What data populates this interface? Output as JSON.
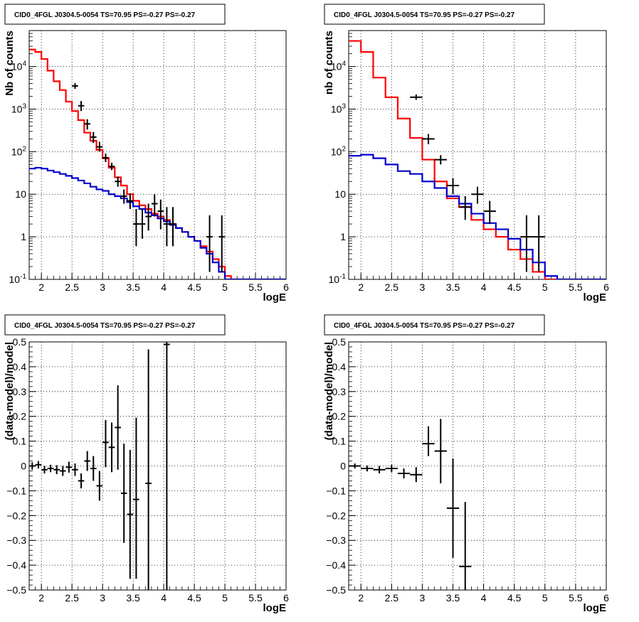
{
  "chart_data": [
    {
      "type": "line",
      "title": "CID0_4FGL J0304.5-0054 TS=70.95 PS=-0.27 PS=-0.27",
      "xlabel": "logE",
      "ylabel": "Nb of counts",
      "yscale": "log",
      "xlim": [
        1.8,
        6.0
      ],
      "ylim": [
        0.1,
        70000
      ],
      "xticks": [
        "2",
        "2.5",
        "3",
        "3.5",
        "4",
        "4.5",
        "5",
        "5.5",
        "6"
      ],
      "yticks": [
        "10^-1",
        "1",
        "10",
        "10^2",
        "10^3",
        "10^4"
      ],
      "grid": true,
      "colors": {
        "model": "#ff0000",
        "component": "#0000cc",
        "data": "#000000"
      },
      "series": [
        {
          "x": [
            1.85,
            1.95,
            2.05,
            2.15,
            2.25,
            2.35,
            2.45,
            2.55,
            2.65,
            2.75,
            2.85,
            2.95,
            3.05,
            3.15,
            3.25,
            3.35,
            3.45,
            3.55,
            3.65,
            3.75,
            3.85,
            3.95,
            4.05,
            4.15,
            4.25,
            4.35,
            4.45,
            4.55,
            4.65,
            4.75,
            4.85,
            4.95,
            5.05,
            5.15,
            5.25,
            5.35,
            5.45,
            5.55,
            5.65,
            5.75,
            5.85,
            5.95
          ],
          "values": [
            25000,
            22000,
            15000,
            8000,
            4500,
            2800,
            1500,
            900,
            550,
            280,
            180,
            110,
            70,
            42,
            25,
            16,
            10,
            7,
            5.5,
            4.5,
            3.5,
            3,
            2.5,
            2,
            1.6,
            1.3,
            1,
            0.8,
            0.6,
            0.45,
            0.3,
            0.2,
            0.12,
            0.1,
            0.1,
            0.1,
            0.1,
            0.1,
            0.1,
            0.1,
            0.1,
            0.1
          ]
        },
        {
          "x": [
            1.85,
            1.95,
            2.05,
            2.15,
            2.25,
            2.35,
            2.45,
            2.55,
            2.65,
            2.75,
            2.85,
            2.95,
            3.05,
            3.15,
            3.25,
            3.35,
            3.45,
            3.55,
            3.65,
            3.75,
            3.85,
            3.95,
            4.05,
            4.15,
            4.25,
            4.35,
            4.45,
            4.55,
            4.65,
            4.75,
            4.85,
            4.95,
            5.05,
            5.15,
            5.25,
            5.35,
            5.45,
            5.55,
            5.65,
            5.75,
            5.85,
            5.95
          ],
          "values": [
            40,
            42,
            40,
            36,
            33,
            30,
            27,
            24,
            21,
            18,
            15,
            13,
            12,
            10,
            9,
            8,
            6.5,
            5.2,
            4.5,
            3.7,
            3.2,
            2.7,
            2.3,
            1.9,
            1.6,
            1.3,
            1,
            0.8,
            0.55,
            0.4,
            0.25,
            0.15,
            0.1,
            0.1,
            0.1,
            0.1,
            0.1,
            0.1,
            0.1,
            0.1,
            0.1,
            0.1
          ]
        },
        {
          "x": [
            2.55,
            2.65,
            2.75,
            2.85,
            2.95,
            3.05,
            3.15,
            3.25,
            3.35,
            3.45,
            3.55,
            3.65,
            3.75,
            3.85,
            3.95,
            4.05,
            4.15,
            4.75,
            4.95
          ],
          "values": [
            3500,
            1200,
            450,
            220,
            130,
            72,
            45,
            20,
            9,
            7,
            2,
            2,
            3,
            6,
            4,
            2,
            2,
            1,
            1
          ],
          "yerr_low": [
            500,
            300,
            120,
            60,
            30,
            15,
            8,
            5,
            3,
            2.5,
            1.4,
            1.1,
            1.6,
            3,
            2.5,
            1.4,
            1.4,
            0.85,
            0.85
          ],
          "yerr_high": [
            600,
            350,
            130,
            70,
            40,
            18,
            10,
            6,
            4,
            3.5,
            2.5,
            2.6,
            3,
            4,
            3.5,
            3,
            3,
            2.2,
            2.2
          ]
        }
      ]
    },
    {
      "type": "line",
      "title": "CID0_4FGL J0304.5-0054 TS=70.95 PS=-0.27 PS=-0.27",
      "xlabel": "logE",
      "ylabel": "nb of counts",
      "yscale": "log",
      "xlim": [
        1.8,
        6.0
      ],
      "ylim": [
        0.1,
        70000
      ],
      "xticks": [
        "2",
        "2.5",
        "3",
        "3.5",
        "4",
        "4.5",
        "5",
        "5.5",
        "6"
      ],
      "yticks": [
        "10^-1",
        "1",
        "10",
        "10^2",
        "10^3",
        "10^4"
      ],
      "grid": true,
      "colors": {
        "model": "#ff0000",
        "component": "#0000cc",
        "data": "#000000"
      },
      "series": [
        {
          "x": [
            1.9,
            2.1,
            2.3,
            2.5,
            2.7,
            2.9,
            3.1,
            3.3,
            3.5,
            3.7,
            3.9,
            4.1,
            4.3,
            4.5,
            4.7,
            4.9,
            5.1,
            5.3,
            5.5,
            5.7,
            5.9
          ],
          "values": [
            40000,
            22000,
            5500,
            1900,
            600,
            210,
            65,
            20,
            8,
            5,
            2.5,
            1.5,
            1,
            0.5,
            0.3,
            0.15,
            0.1,
            0.1,
            0.1,
            0.1,
            0.1
          ]
        },
        {
          "x": [
            1.9,
            2.1,
            2.3,
            2.5,
            2.7,
            2.9,
            3.1,
            3.3,
            3.5,
            3.7,
            3.9,
            4.1,
            4.3,
            4.5,
            4.7,
            4.9,
            5.1,
            5.3,
            5.5,
            5.7,
            5.9
          ],
          "values": [
            80,
            85,
            70,
            50,
            35,
            30,
            20,
            14,
            9,
            6,
            3.5,
            2.1,
            1.5,
            0.9,
            0.5,
            0.25,
            0.12,
            0.1,
            0.1,
            0.1,
            0.1
          ]
        },
        {
          "x": [
            2.9,
            3.1,
            3.3,
            3.5,
            3.7,
            3.9,
            4.1,
            4.7,
            4.9
          ],
          "values": [
            1900,
            200,
            65,
            16,
            5,
            10,
            4,
            1,
            1
          ],
          "yerr_low": [
            250,
            50,
            15,
            6,
            2.5,
            4,
            2,
            0.85,
            0.85
          ],
          "yerr_high": [
            300,
            60,
            18,
            8,
            4,
            5,
            3,
            2.2,
            2.2
          ]
        }
      ]
    },
    {
      "type": "scatter",
      "title": "CID0_4FGL J0304.5-0054 TS=70.95 PS=-0.27 PS=-0.27",
      "xlabel": "logE",
      "ylabel": "(data-model)/model",
      "xlim": [
        1.8,
        6.0
      ],
      "ylim": [
        -0.5,
        0.5
      ],
      "xticks": [
        "2",
        "2.5",
        "3",
        "3.5",
        "4",
        "4.5",
        "5",
        "5.5",
        "6"
      ],
      "yticks": [
        "-0.5",
        "-0.4",
        "-0.3",
        "-0.2",
        "-0.1",
        "0",
        "0.1",
        "0.2",
        "0.3",
        "0.4",
        "0.5"
      ],
      "grid": true,
      "colors": {
        "data": "#000000"
      },
      "series": [
        {
          "x": [
            1.85,
            1.95,
            2.05,
            2.15,
            2.25,
            2.35,
            2.45,
            2.55,
            2.65,
            2.75,
            2.85,
            2.95,
            3.05,
            3.15,
            3.25,
            3.35,
            3.45,
            3.55,
            3.75,
            4.05
          ],
          "values": [
            0.0,
            0.005,
            -0.015,
            -0.01,
            -0.015,
            -0.02,
            -0.005,
            -0.015,
            -0.06,
            0.02,
            -0.01,
            -0.08,
            0.095,
            0.075,
            0.155,
            -0.11,
            -0.195,
            -0.135,
            -0.07,
            0.49
          ],
          "yerr_low": [
            0.015,
            0.015,
            0.015,
            0.015,
            0.018,
            0.02,
            0.022,
            0.025,
            0.03,
            0.04,
            0.05,
            0.06,
            0.1,
            0.1,
            0.17,
            0.2,
            0.26,
            0.32,
            0.43,
            0.99
          ],
          "yerr_high": [
            0.015,
            0.015,
            0.015,
            0.015,
            0.018,
            0.02,
            0.022,
            0.025,
            0.03,
            0.04,
            0.05,
            0.06,
            0.09,
            0.1,
            0.17,
            0.2,
            0.26,
            0.33,
            0.54,
            0.01
          ]
        }
      ]
    },
    {
      "type": "scatter",
      "title": "CID0_4FGL J0304.5-0054 TS=70.95 PS=-0.27 PS=-0.27",
      "xlabel": "logE",
      "ylabel": "(data-model)/model",
      "xlim": [
        1.8,
        6.0
      ],
      "ylim": [
        -0.5,
        0.5
      ],
      "xticks": [
        "2",
        "2.5",
        "3",
        "3.5",
        "4",
        "4.5",
        "5",
        "5.5",
        "6"
      ],
      "yticks": [
        "-0.5",
        "-0.4",
        "-0.3",
        "-0.2",
        "-0.1",
        "0",
        "0.1",
        "0.2",
        "0.3",
        "0.4",
        "0.5"
      ],
      "grid": true,
      "colors": {
        "data": "#000000"
      },
      "series": [
        {
          "x": [
            1.9,
            2.1,
            2.3,
            2.5,
            2.7,
            2.9,
            3.1,
            3.3,
            3.5,
            3.7
          ],
          "values": [
            0.0,
            -0.01,
            -0.015,
            -0.01,
            -0.03,
            -0.035,
            0.09,
            0.06,
            -0.17,
            -0.405
          ],
          "yerr_low": [
            0.01,
            0.012,
            0.015,
            0.015,
            0.02,
            0.03,
            0.05,
            0.13,
            0.2,
            0.1
          ],
          "yerr_high": [
            0.01,
            0.012,
            0.015,
            0.015,
            0.02,
            0.03,
            0.07,
            0.13,
            0.2,
            0.26
          ]
        }
      ]
    }
  ]
}
